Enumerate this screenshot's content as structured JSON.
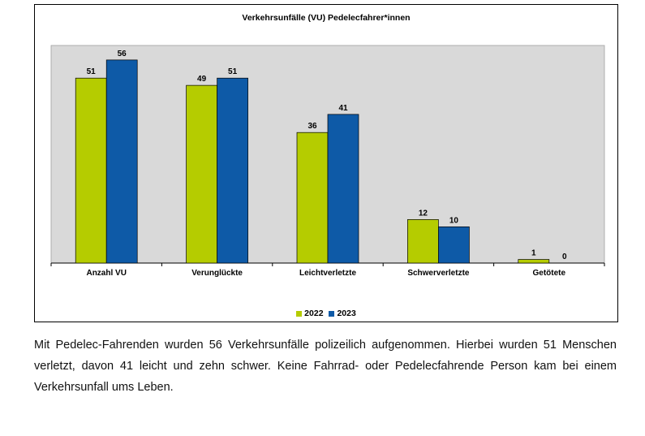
{
  "chart_data": {
    "type": "bar",
    "title": "Verkehrsunfälle (VU) Pedelecfahrer*innen",
    "categories": [
      "Anzahl VU",
      "Verunglückte",
      "Leichtverletzte",
      "Schwerverletzte",
      "Getötete"
    ],
    "series": [
      {
        "name": "2022",
        "values": [
          51,
          49,
          36,
          12,
          1
        ],
        "color": "#b5cc00"
      },
      {
        "name": "2023",
        "values": [
          56,
          51,
          41,
          10,
          0
        ],
        "color": "#0e5aa7"
      }
    ],
    "ylim": [
      0,
      60
    ],
    "grid": false,
    "legend_position": "bottom",
    "plot_background": "#d9d9d9"
  },
  "caption": "Mit Pedelec-Fahrenden wurden 56 Verkehrsunfälle polizeilich aufgenommen. Hierbei wurden 51 Menschen verletzt, davon 41 leicht und zehn schwer. Keine Fahrrad- oder Pedelecfahrende Person kam bei einem Verkehrsunfall ums Leben."
}
